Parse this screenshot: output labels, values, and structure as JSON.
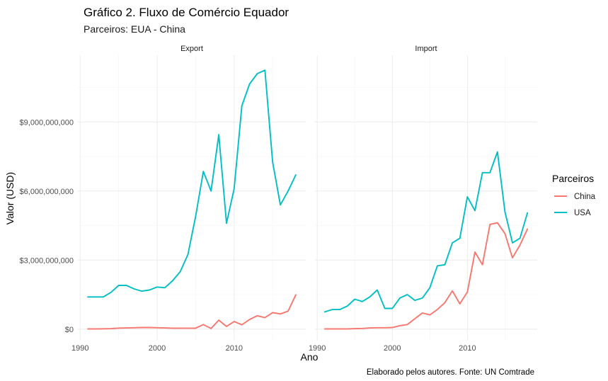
{
  "title": "Gráfico 2. Fluxo de Comércio Equador",
  "subtitle": "Parceiros: EUA - China",
  "caption": "Elaborado pelos autores. Fonte: UN Comtrade",
  "legend": {
    "title": "Parceiros",
    "items": [
      {
        "label": "China",
        "color": "#F8766D"
      },
      {
        "label": "USA",
        "color": "#00BFC4"
      }
    ]
  },
  "chart_data": {
    "type": "line",
    "xlabel": "Ano",
    "ylabel": "Valor (USD)",
    "xlim": [
      1989.7,
      2019.3
    ],
    "ylim": [
      -500000000,
      11900000000
    ],
    "x_ticks": [
      1990,
      2000,
      2010
    ],
    "x_tick_labels": [
      "1990",
      "2000",
      "2010"
    ],
    "y_ticks": [
      0,
      3000000000,
      6000000000,
      9000000000
    ],
    "y_tick_labels": [
      "$0",
      "$3,000,000,000",
      "$6,000,000,000",
      "$9,000,000,000"
    ],
    "grid": true,
    "legend_position": "right",
    "panels": [
      {
        "name": "Export",
        "series": [
          {
            "name": "China",
            "color": "#F8766D",
            "x": [
              1991,
              1992,
              1993,
              1994,
              1995,
              1996,
              1997,
              1998,
              1999,
              2000,
              2001,
              2002,
              2003,
              2004,
              2005,
              2006,
              2007,
              2008,
              2009,
              2010,
              2011,
              2012,
              2013,
              2014,
              2015,
              2016,
              2017,
              2018
            ],
            "y": [
              10000000,
              10000000,
              15000000,
              20000000,
              45000000,
              50000000,
              60000000,
              70000000,
              70000000,
              60000000,
              50000000,
              40000000,
              40000000,
              40000000,
              40000000,
              200000000,
              30000000,
              390000000,
              120000000,
              330000000,
              190000000,
              420000000,
              580000000,
              500000000,
              720000000,
              660000000,
              780000000,
              1490000000
            ]
          },
          {
            "name": "USA",
            "color": "#00BFC4",
            "x": [
              1991,
              1992,
              1993,
              1994,
              1995,
              1996,
              1997,
              1998,
              1999,
              2000,
              2001,
              2002,
              2003,
              2004,
              2005,
              2006,
              2007,
              2008,
              2009,
              2010,
              2011,
              2012,
              2013,
              2014,
              2015,
              2016,
              2017,
              2018
            ],
            "y": [
              1400000000,
              1400000000,
              1400000000,
              1600000000,
              1900000000,
              1900000000,
              1750000000,
              1650000000,
              1700000000,
              1830000000,
              1800000000,
              2100000000,
              2500000000,
              3250000000,
              4900000000,
              6850000000,
              6000000000,
              8450000000,
              4600000000,
              6100000000,
              9700000000,
              10650000000,
              11100000000,
              11250000000,
              7250000000,
              5400000000,
              6000000000,
              6700000000
            ]
          }
        ]
      },
      {
        "name": "Import",
        "series": [
          {
            "name": "China",
            "color": "#F8766D",
            "x": [
              1991,
              1992,
              1993,
              1994,
              1995,
              1996,
              1997,
              1998,
              1999,
              2000,
              2001,
              2002,
              2003,
              2004,
              2005,
              2006,
              2007,
              2008,
              2009,
              2010,
              2011,
              2012,
              2013,
              2014,
              2015,
              2016,
              2017,
              2018
            ],
            "y": [
              10000000,
              10000000,
              10000000,
              10000000,
              20000000,
              30000000,
              50000000,
              60000000,
              60000000,
              70000000,
              150000000,
              200000000,
              450000000,
              700000000,
              620000000,
              850000000,
              1150000000,
              1660000000,
              1100000000,
              1610000000,
              3350000000,
              2800000000,
              4550000000,
              4620000000,
              4150000000,
              3100000000,
              3650000000,
              4350000000
            ]
          },
          {
            "name": "USA",
            "color": "#00BFC4",
            "x": [
              1991,
              1992,
              1993,
              1994,
              1995,
              1996,
              1997,
              1998,
              1999,
              2000,
              2001,
              2002,
              2003,
              2004,
              2005,
              2006,
              2007,
              2008,
              2009,
              2010,
              2011,
              2012,
              2013,
              2014,
              2015,
              2016,
              2017,
              2018
            ],
            "y": [
              750000000,
              850000000,
              850000000,
              1000000000,
              1300000000,
              1200000000,
              1400000000,
              1700000000,
              900000000,
              900000000,
              1350000000,
              1500000000,
              1250000000,
              1350000000,
              1800000000,
              2750000000,
              2800000000,
              3750000000,
              3950000000,
              5750000000,
              5150000000,
              6800000000,
              6800000000,
              7700000000,
              5100000000,
              3750000000,
              3950000000,
              5050000000
            ]
          }
        ]
      }
    ]
  }
}
